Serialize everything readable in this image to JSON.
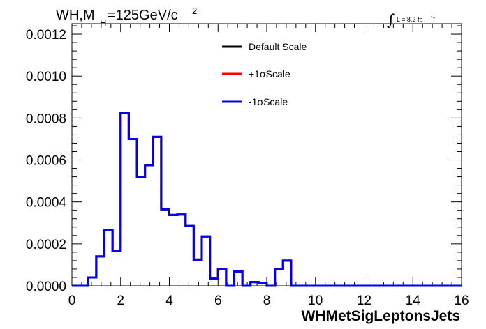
{
  "chart_data": {
    "type": "line",
    "title": {
      "main": "WH,M",
      "sub": "H",
      "rest": "=125GeV/c",
      "sup": "2"
    },
    "lumi": {
      "integral": "∫",
      "text": "L = 8.2 fb",
      "sup": "-1"
    },
    "xlabel": "WHMetSigLeptonsJets",
    "ylabel": "",
    "xlim": [
      0,
      16
    ],
    "ylim": [
      0,
      0.00125
    ],
    "xticks": [
      0,
      2,
      4,
      6,
      8,
      10,
      12,
      14,
      16
    ],
    "xtick_labels": [
      "0",
      "2",
      "4",
      "6",
      "8",
      "10",
      "12",
      "14",
      "16"
    ],
    "yticks": [
      0,
      0.0002,
      0.0004,
      0.0006,
      0.0008,
      0.001,
      0.0012
    ],
    "ytick_labels": [
      "0.0000",
      "0.0002",
      "0.0004",
      "0.0006",
      "0.0008",
      "0.0010",
      "0.0012"
    ],
    "grid": false,
    "legend_position": "top-center",
    "bin_edges": [
      0,
      0.333,
      0.667,
      1.0,
      1.333,
      1.667,
      2.0,
      2.333,
      2.667,
      3.0,
      3.333,
      3.667,
      4.0,
      4.333,
      4.667,
      5.0,
      5.333,
      5.667,
      6.0,
      6.333,
      6.667,
      7.0,
      7.333,
      7.667,
      8.0,
      8.333,
      8.667,
      9.0,
      16.0
    ],
    "series": [
      {
        "name": "Default Scale",
        "color": "#000000",
        "values": [
          0,
          0,
          4e-05,
          0.00014,
          0.000265,
          0.000165,
          0.000825,
          0.0007,
          0.00052,
          0.000575,
          0.00071,
          0.000365,
          0.000338,
          0.00034,
          0.000285,
          0.000125,
          0.000235,
          3.5e-05,
          8e-05,
          0.0,
          6.8e-05,
          0.0,
          1.8e-05,
          1.2e-05,
          0.0,
          8e-05,
          0.00012,
          0.0,
          0.0
        ]
      },
      {
        "name": "+1σScale",
        "color": "#ff0000",
        "values": [
          0,
          0,
          4e-05,
          0.00014,
          0.000265,
          0.000165,
          0.000825,
          0.0007,
          0.00052,
          0.000575,
          0.00071,
          0.000365,
          0.000338,
          0.00034,
          0.000285,
          0.000125,
          0.000235,
          3.5e-05,
          8e-05,
          0.0,
          6.8e-05,
          0.0,
          1.8e-05,
          1.2e-05,
          0.0,
          8e-05,
          0.00012,
          0.0,
          0.0
        ]
      },
      {
        "name": "-1σScale",
        "color": "#0000ee",
        "values": [
          0,
          0,
          4e-05,
          0.00014,
          0.000265,
          0.000165,
          0.000825,
          0.0007,
          0.00052,
          0.000575,
          0.00071,
          0.000365,
          0.000338,
          0.00034,
          0.000285,
          0.000125,
          0.000235,
          3.5e-05,
          8e-05,
          0.0,
          6.8e-05,
          0.0,
          1.8e-05,
          1.2e-05,
          0.0,
          8e-05,
          0.00012,
          0.0,
          0.0
        ]
      }
    ]
  }
}
